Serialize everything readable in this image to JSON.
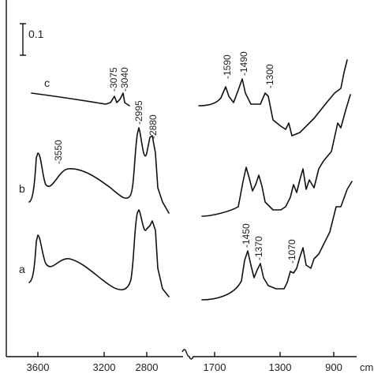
{
  "chart_data": {
    "type": "line",
    "x_unit_label": "cm",
    "x_ticks_left": [
      "3600",
      "3200",
      "2800"
    ],
    "x_ticks_right": [
      "1700",
      "1300",
      "900"
    ],
    "axis_break": true,
    "scale_bar_label": "0.1",
    "series": [
      {
        "name": "c",
        "annotations": [
          "3075",
          "3040",
          "2995",
          "2880",
          "1590",
          "1490",
          "1300"
        ]
      },
      {
        "name": "b",
        "annotations": [
          "3550"
        ]
      },
      {
        "name": "a",
        "annotations": [
          "1450",
          "1370",
          "1070"
        ]
      }
    ],
    "grid": false
  }
}
